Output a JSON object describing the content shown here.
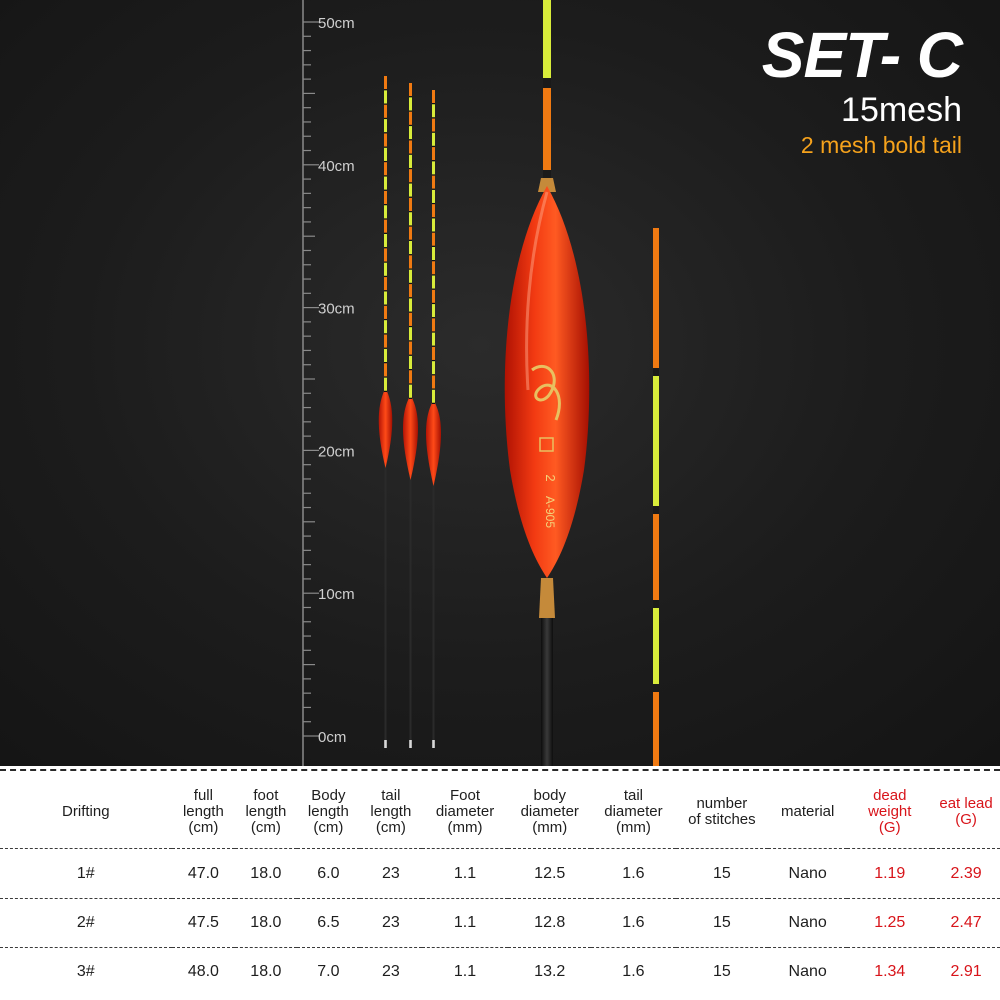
{
  "heading": {
    "set": "SET- C",
    "mesh": "15mesh",
    "tail": "2 mesh bold tail"
  },
  "ruler": {
    "unit": "cm",
    "labels": [
      "50cm",
      "40cm",
      "30cm",
      "20cm",
      "10cm",
      "0cm"
    ]
  },
  "float_markings": {
    "number": "2",
    "model": "A-905"
  },
  "table": {
    "headers": [
      [
        "Drifting"
      ],
      [
        "full",
        "length",
        "(cm)"
      ],
      [
        "foot",
        "length",
        "(cm)"
      ],
      [
        "Body",
        "length",
        "(cm)"
      ],
      [
        "tail",
        "length",
        "(cm)"
      ],
      [
        "Foot",
        "diameter",
        "(mm)"
      ],
      [
        "body",
        "diameter",
        "(mm)"
      ],
      [
        "tail",
        "diameter",
        "(mm)"
      ],
      [
        "number",
        "of stitches"
      ],
      [
        "material"
      ],
      [
        "dead",
        "weight",
        "(G)"
      ],
      [
        "eat lead",
        "(G)"
      ]
    ],
    "rows": [
      [
        "1#",
        "47.0",
        "18.0",
        "6.0",
        "23",
        "1.1",
        "12.5",
        "1.6",
        "15",
        "Nano",
        "1.19",
        "2.39"
      ],
      [
        "2#",
        "47.5",
        "18.0",
        "6.5",
        "23",
        "1.1",
        "12.8",
        "1.6",
        "15",
        "Nano",
        "1.25",
        "2.47"
      ],
      [
        "3#",
        "48.0",
        "18.0",
        "7.0",
        "23",
        "1.1",
        "13.2",
        "1.6",
        "15",
        "Nano",
        "1.34",
        "2.91"
      ]
    ]
  },
  "colors": {
    "float_red": "#e8240f",
    "tail_orange": "#f07a12",
    "tail_yellow": "#d8ec3a",
    "highlight_red": "#d8141a",
    "subtitle_orange": "#f5a21c"
  }
}
